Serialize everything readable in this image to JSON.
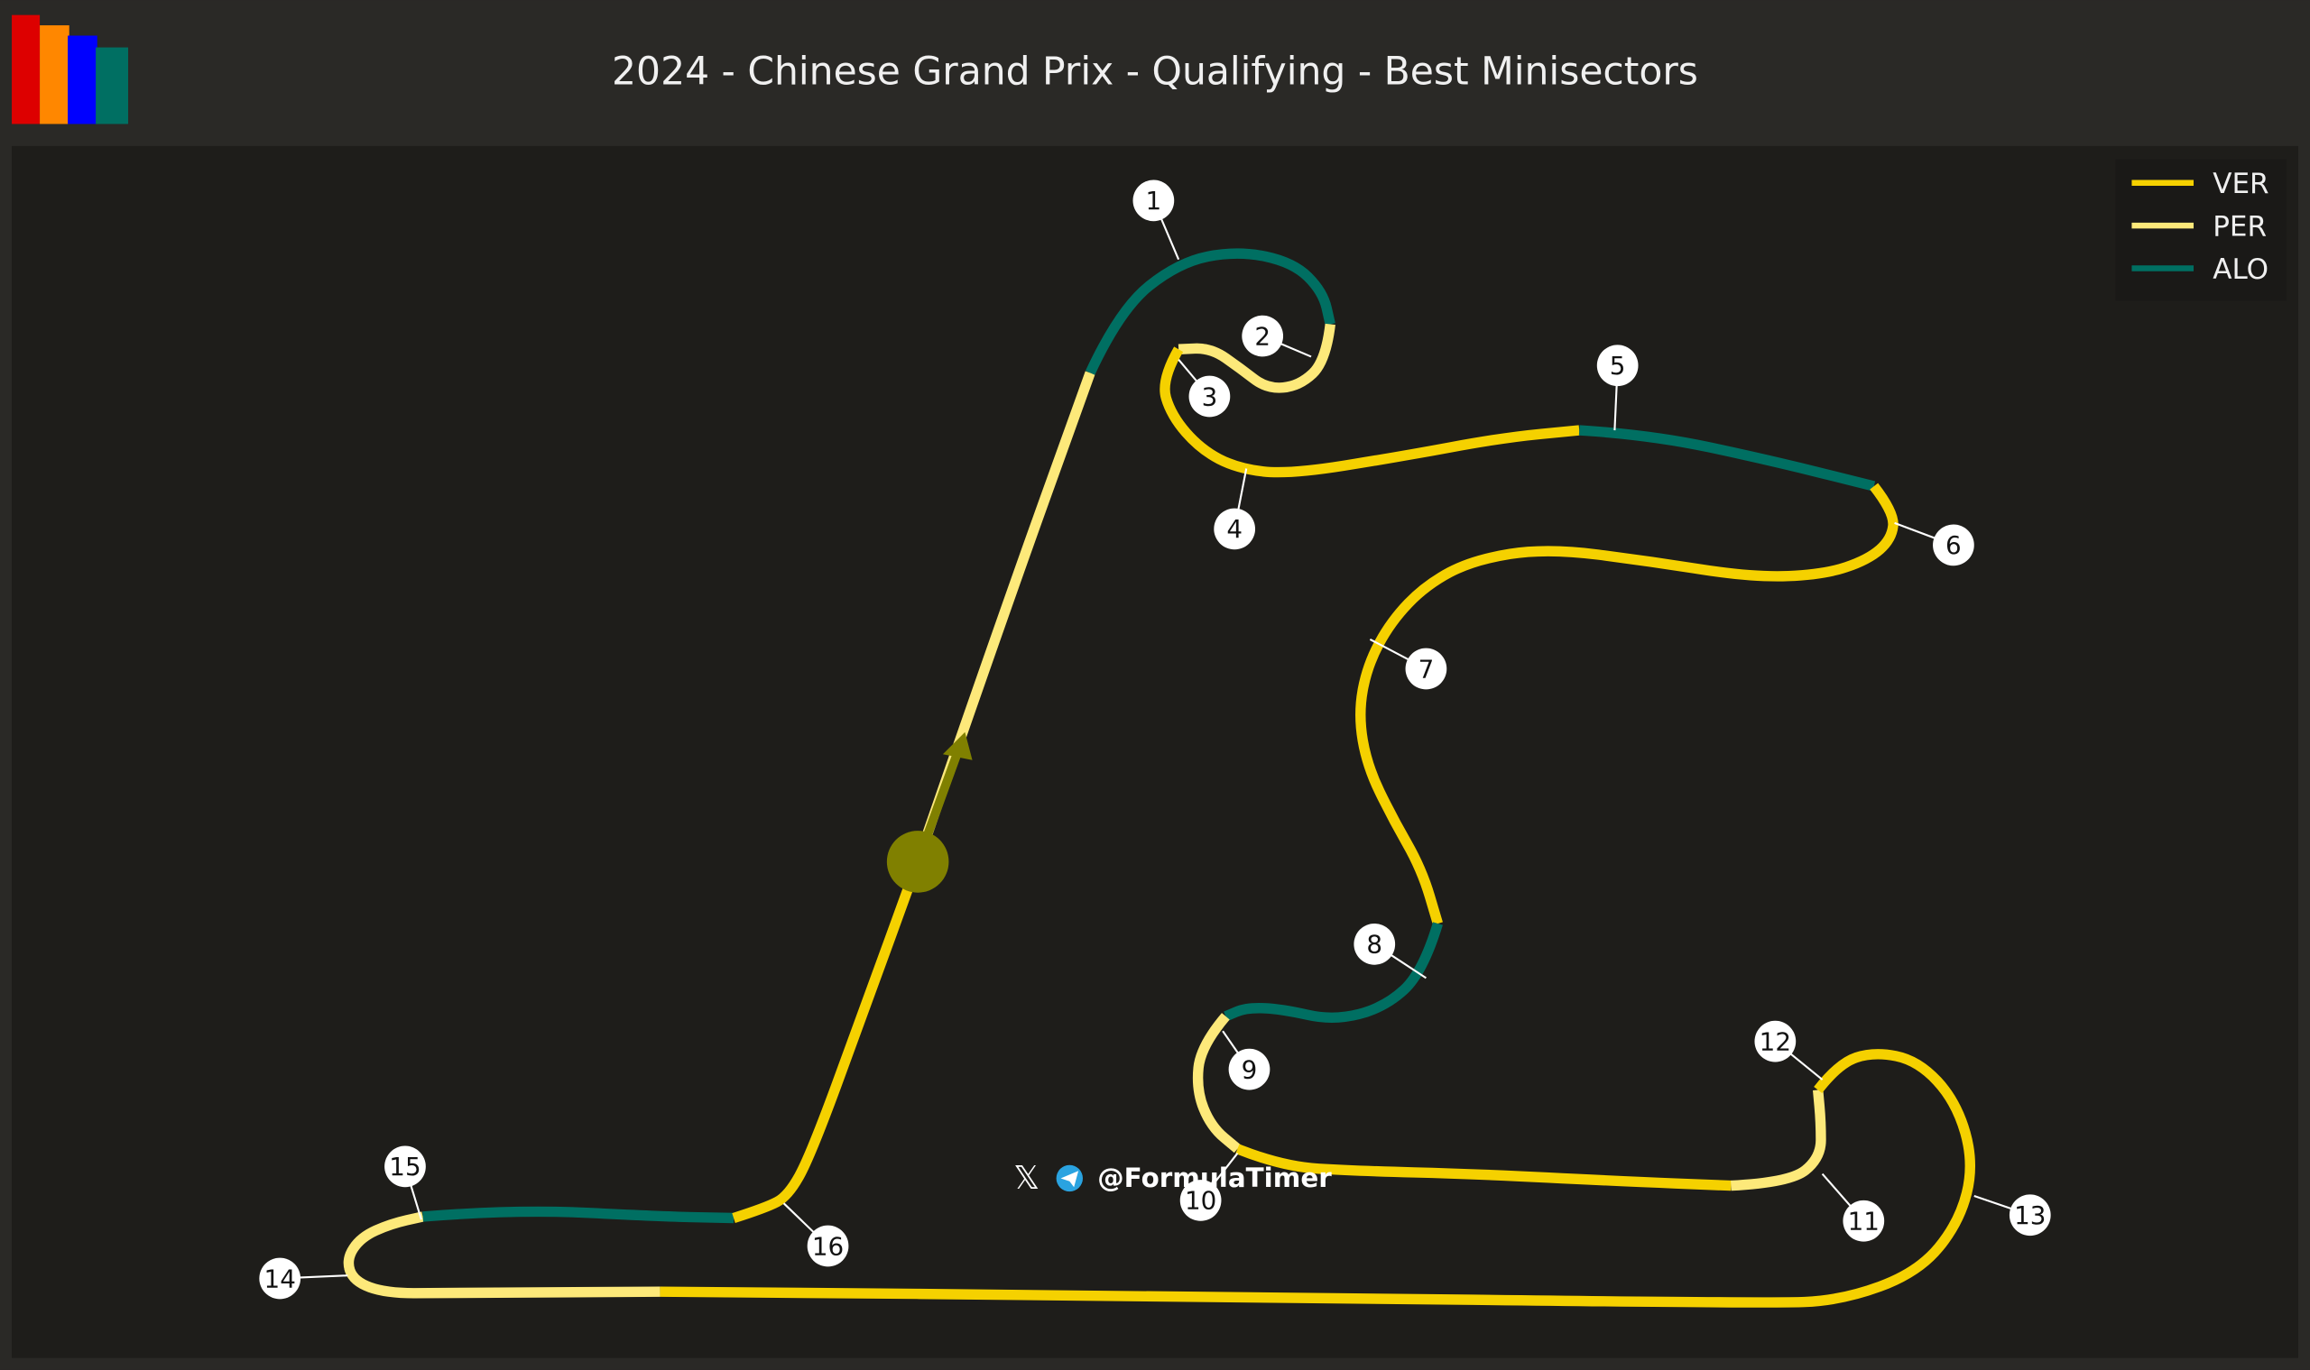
{
  "title": "2024 - Chinese Grand Prix - Qualifying - Best Minisectors",
  "watermark": {
    "handle": "@FormulaTimer",
    "icons": [
      "x-icon",
      "telegram-icon"
    ]
  },
  "logo": {
    "colors": [
      "#dd0000",
      "#ff8700",
      "#0000ff",
      "#006f62"
    ]
  },
  "chart_data": {
    "type": "track-map",
    "title": "2024 - Chinese Grand Prix - Qualifying - Best Minisectors",
    "legend": {
      "position": "top-right",
      "entries": [
        {
          "name": "VER",
          "color": "#f5d100"
        },
        {
          "name": "PER",
          "color": "#fde97a"
        },
        {
          "name": "ALO",
          "color": "#006f62"
        }
      ]
    },
    "minisector_best_driver_in_order": [
      "PER",
      "ALO",
      "PER",
      "VER",
      "ALO",
      "VER",
      "ALO",
      "PER",
      "VER",
      "PER",
      "VER",
      "PER",
      "ALO",
      "VER"
    ],
    "corners": [
      "1",
      "2",
      "3",
      "4",
      "5",
      "6",
      "7",
      "8",
      "9",
      "10",
      "11",
      "12",
      "13",
      "14",
      "15",
      "16"
    ],
    "start_marker_color": "#808000"
  }
}
